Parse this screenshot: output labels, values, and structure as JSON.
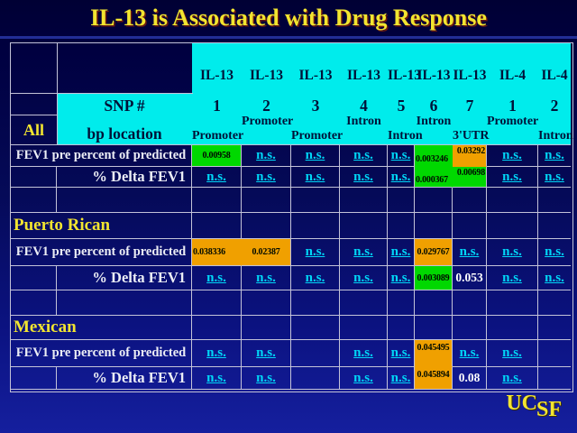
{
  "slide_title": "IL-13 is Associated with Drug Response",
  "colors": {
    "header_cyan": "#00ecec",
    "significant_green": "#00d800",
    "significant_orange": "#f0a000",
    "accent_yellow": "#f2e530",
    "ns_text_cyan": "#00d6f7",
    "grid_line": "#c3c3d8",
    "background_top": "#000034",
    "background_bottom": "#151f9e"
  },
  "table": {
    "gene_row": [
      "IL-13",
      "IL-13",
      "IL-13",
      "IL-13",
      "IL-13",
      "IL-13",
      "IL-13",
      "IL-4",
      "IL-4"
    ],
    "corner": {
      "line1": "SNP #",
      "line2": "bp location"
    },
    "group_label": "All",
    "snp_numbers": [
      "1",
      "2",
      "3",
      "4",
      "5",
      "6",
      "7",
      "1",
      "2"
    ],
    "snp_locations": [
      "Promoter",
      "Promoter",
      "Promoter",
      "Intron",
      "Intron",
      "Intron",
      "3'UTR",
      "Promoter",
      "Intron"
    ],
    "row_labels": {
      "fev1": "FEV1 pre percent of predicted",
      "delta": "% Delta FEV1"
    },
    "empty_row": {
      "cells": [
        "",
        "",
        "",
        "",
        "",
        "",
        "",
        "",
        ""
      ],
      "styles": [
        "",
        "",
        "",
        "",
        "",
        "",
        "",
        "",
        ""
      ]
    },
    "sections": {
      "all": {
        "fev1": {
          "cells": [
            "0.00958",
            "n.s.",
            "n.s.",
            "n.s.",
            "n.s.",
            "0.003246",
            "0.03292",
            "n.s.",
            "n.s."
          ],
          "styles": [
            "pv bg-g",
            "ns",
            "ns",
            "ns",
            "ns",
            "pv bl bg-g mbg mrg",
            "pv tr bg-o mbo",
            "ns",
            "ns"
          ]
        },
        "delta": {
          "cells": [
            "n.s.",
            "n.s.",
            "n.s.",
            "n.s.",
            "n.s.",
            "0.000367",
            "0.00698",
            "n.s.",
            "n.s."
          ],
          "styles": [
            "ns",
            "ns",
            "ns",
            "ns",
            "ns",
            "pv bl bg-g mrg",
            "pv tr bg-g",
            "ns",
            "ns"
          ]
        }
      },
      "puerto_rican": {
        "label": "Puerto Rican",
        "fev1": {
          "cells": [
            "0.038336",
            "0.02387",
            "n.s.",
            "n.s.",
            "n.s.",
            "0.029767",
            "n.s.",
            "n.s.",
            "n.s."
          ],
          "styles": [
            "pv tl bg-o mro",
            "pv bg-o",
            "ns",
            "ns",
            "ns",
            "pv bg-o",
            "ns",
            "ns",
            "ns"
          ]
        },
        "delta": {
          "cells": [
            "n.s.",
            "n.s.",
            "n.s.",
            "n.s.",
            "n.s.",
            "0.003089",
            "0.053",
            "n.s.",
            "n.s."
          ],
          "styles": [
            "ns",
            "ns",
            "ns",
            "ns",
            "ns",
            "pv bg-g",
            "wv",
            "ns",
            "ns"
          ]
        }
      },
      "mexican": {
        "label": "Mexican",
        "fev1": {
          "cells": [
            "n.s.",
            "n.s.",
            "",
            "n.s.",
            "n.s.",
            "0.045495",
            "n.s.",
            "n.s.",
            ""
          ],
          "styles": [
            "ns",
            "ns",
            "",
            "ns",
            "ns",
            "pv tc bg-o mbo",
            "ns",
            "ns",
            ""
          ]
        },
        "delta": {
          "cells": [
            "n.s.",
            "n.s.",
            "",
            "n.s.",
            "n.s.",
            "0.045894",
            "0.08",
            "n.s.",
            ""
          ],
          "styles": [
            "ns",
            "ns",
            "",
            "ns",
            "ns",
            "pv tc bg-o",
            "wv",
            "ns",
            ""
          ]
        }
      }
    }
  },
  "logo": {
    "uc": "UC",
    "sf": "SF"
  }
}
